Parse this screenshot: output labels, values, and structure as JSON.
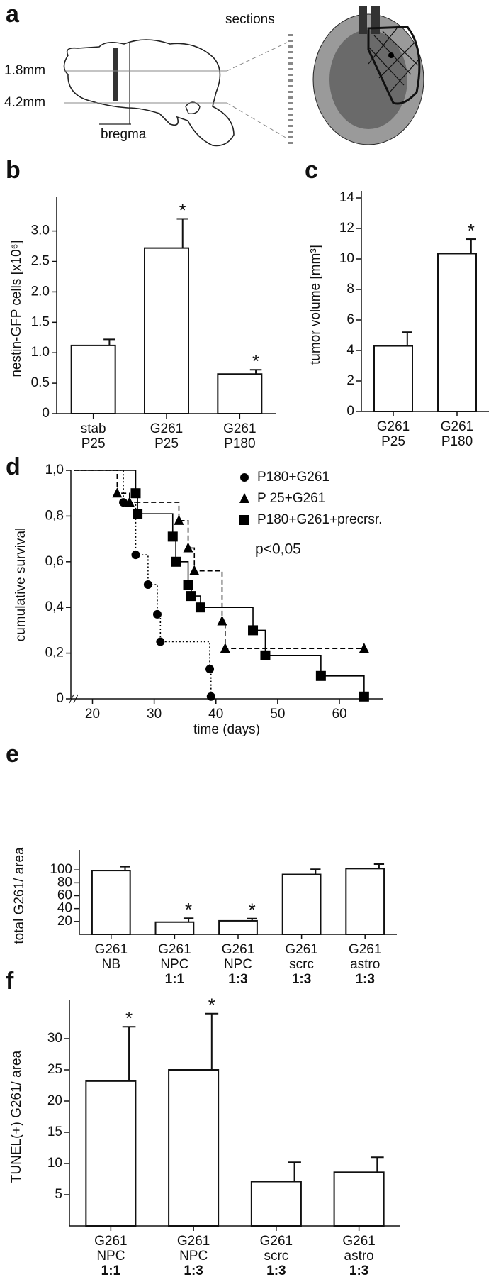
{
  "figure": {
    "panel": "a",
    "sections": "sections",
    "levels": [
      "1.8mm",
      "4.2mm"
    ],
    "reference": "bregma"
  },
  "chart_data": [
    {
      "type": "bar",
      "panel": "b",
      "ylabel": "nestin-GFP cells [x10⁶]",
      "categories": [
        [
          "stab",
          "P25"
        ],
        [
          "G261",
          "P25"
        ],
        [
          "G261",
          "P180"
        ]
      ],
      "values": [
        1.12,
        2.72,
        0.65
      ],
      "errors": [
        0.1,
        0.48,
        0.07
      ],
      "markers": [
        null,
        "*",
        "*"
      ],
      "color": "#ffffff",
      "ylim": [
        0,
        3.45
      ],
      "yticks": [
        0,
        0.5,
        {
          "value": 1,
          "label": "1.0"
        },
        1.5,
        {
          "value": 2,
          "label": "2.0"
        },
        2.5,
        {
          "value": 3,
          "label": "3.0"
        }
      ]
    },
    {
      "type": "bar",
      "panel": "c",
      "ylabel": "tumor volume [mm³]",
      "categories": [
        [
          "G261",
          "P25"
        ],
        [
          "G261",
          "P180"
        ]
      ],
      "values": [
        4.3,
        10.35
      ],
      "errors": [
        0.9,
        0.95
      ],
      "markers": [
        null,
        "*"
      ],
      "color": "#ffffff",
      "ylim": [
        0,
        14
      ],
      "yticks": [
        0,
        2,
        4,
        6,
        8,
        10,
        12,
        14
      ]
    },
    {
      "type": "line",
      "panel": "d",
      "xlabel": "time (days)",
      "ylabel": "cumulative survival",
      "annotation": "p<0,05",
      "step": true,
      "xlim": [
        16.5,
        67
      ],
      "xticks": [
        20,
        30,
        40,
        50,
        60
      ],
      "ylim": [
        0,
        1
      ],
      "yticks": [
        0,
        {
          "value": 0.2,
          "label": "0,2"
        },
        {
          "value": 0.4,
          "label": "0,4"
        },
        {
          "value": 0.6,
          "label": "0,6"
        },
        {
          "value": 0.8,
          "label": "0,8"
        },
        {
          "value": 1,
          "label": "1,0"
        }
      ],
      "series": [
        {
          "name": "P180+G261",
          "color": "#000000",
          "marker": "circle",
          "dash": "dotted",
          "x": [
            17,
            25,
            27,
            29,
            30.5,
            31,
            39,
            39.2
          ],
          "values": [
            1,
            0.86,
            0.63,
            0.5,
            0.37,
            0.25,
            0.13,
            0.01
          ]
        },
        {
          "name": "P  25+G261",
          "color": "#000000",
          "marker": "triangle",
          "dash": "dashed",
          "x": [
            17,
            24,
            26,
            34,
            35.5,
            36.5,
            41,
            41.5,
            64
          ],
          "values": [
            1,
            0.9,
            0.86,
            0.78,
            0.66,
            0.56,
            0.34,
            0.22,
            0.22
          ]
        },
        {
          "name": "P180+G261+precrsr.",
          "color": "#000000",
          "marker": "square",
          "dash": "solid",
          "x": [
            17,
            27,
            27.3,
            33,
            33.5,
            35.5,
            36,
            37.5,
            46,
            48,
            57,
            64
          ],
          "values": [
            1,
            0.9,
            0.81,
            0.71,
            0.6,
            0.5,
            0.45,
            0.4,
            0.3,
            0.19,
            0.1,
            0.01
          ]
        }
      ]
    },
    {
      "type": "bar",
      "panel": "e",
      "ylabel": "total G261/ area",
      "categories": [
        [
          "G261",
          "NB"
        ],
        [
          "G261",
          "NPC",
          "1:1"
        ],
        [
          "G261",
          "NPC",
          "1:3"
        ],
        [
          "G261",
          "scrc",
          "1:3"
        ],
        [
          "G261",
          "astro",
          "1:3"
        ]
      ],
      "values": [
        99,
        19,
        21,
        93,
        102
      ],
      "errors": [
        6,
        6,
        3.5,
        8,
        7
      ],
      "markers": [
        null,
        "*",
        "*",
        null,
        null
      ],
      "color": "#ffffff",
      "ylim": [
        0,
        120
      ],
      "yticks": [
        20,
        40,
        60,
        80,
        100
      ]
    },
    {
      "type": "bar",
      "panel": "f",
      "ylabel": "TUNEL(+) G261/ area",
      "categories": [
        [
          "G261",
          "NPC",
          "1:1"
        ],
        [
          "G261",
          "NPC",
          "1:3"
        ],
        [
          "G261",
          "scrc",
          "1:3"
        ],
        [
          "G261",
          "astro",
          "1:3"
        ]
      ],
      "values": [
        23.2,
        25,
        7.1,
        8.6
      ],
      "errors": [
        8.7,
        9,
        3.1,
        2.4
      ],
      "markers": [
        "*",
        "*",
        null,
        null
      ],
      "color": "#ffffff",
      "ylim": [
        0,
        35
      ],
      "yticks": [
        5,
        10,
        15,
        20,
        25,
        30
      ]
    }
  ]
}
